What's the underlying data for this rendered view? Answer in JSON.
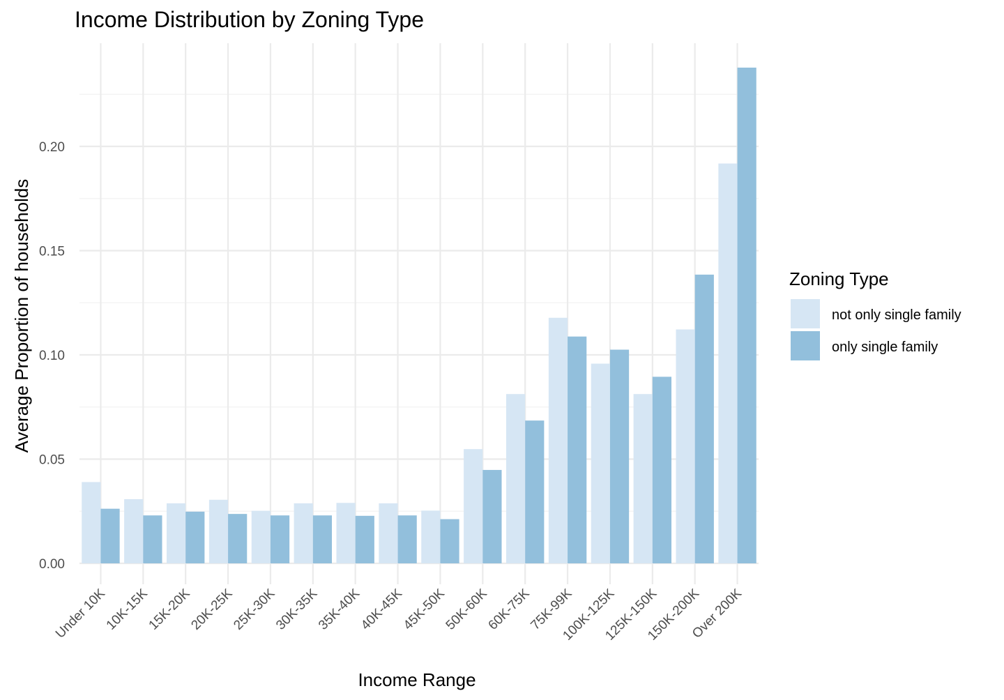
{
  "chart_data": {
    "type": "bar",
    "title": "Income Distribution by Zoning Type",
    "xlabel": "Income Range",
    "ylabel": "Average Proportion of households",
    "categories": [
      "Under 10K",
      "10K-15K",
      "15K-20K",
      "20K-25K",
      "25K-30K",
      "30K-35K",
      "35K-40K",
      "40K-45K",
      "45K-50K",
      "50K-60K",
      "60K-75K",
      "75K-99K",
      "100K-125K",
      "125K-150K",
      "150K-200K",
      "Over 200K"
    ],
    "series": [
      {
        "name": "not only single family",
        "color": "#d6e6f4",
        "values": [
          0.039,
          0.0308,
          0.0288,
          0.0305,
          0.0252,
          0.0288,
          0.029,
          0.0288,
          0.0253,
          0.0548,
          0.0812,
          0.1178,
          0.0958,
          0.0812,
          0.1122,
          0.1918
        ]
      },
      {
        "name": "only single family",
        "color": "#92bfdc",
        "values": [
          0.0262,
          0.023,
          0.0248,
          0.0237,
          0.023,
          0.023,
          0.0228,
          0.023,
          0.0212,
          0.0448,
          0.0685,
          0.1088,
          0.1025,
          0.0895,
          0.1385,
          0.2378
        ]
      }
    ],
    "ylim": [
      -0.0095,
      0.2485
    ],
    "yticks": [
      0.0,
      0.05,
      0.1,
      0.15,
      0.2
    ],
    "ytick_labels": [
      "0.00",
      "0.05",
      "0.10",
      "0.15",
      "0.20"
    ],
    "grid": true,
    "legend": {
      "title": "Zoning Type",
      "position": "right",
      "entries": [
        "not only single family",
        "only single family"
      ]
    }
  }
}
